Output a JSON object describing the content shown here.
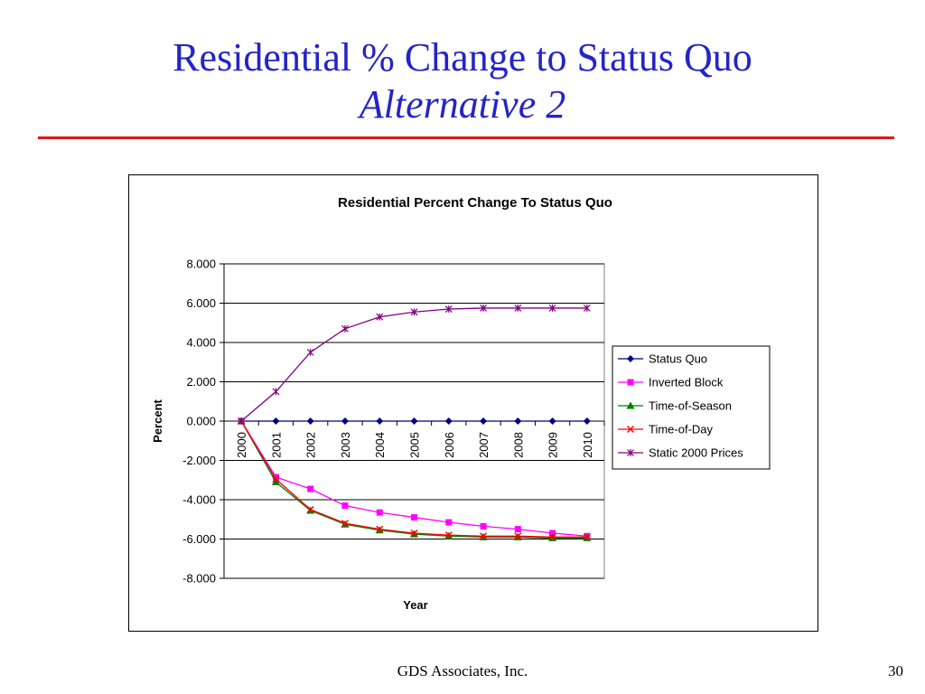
{
  "slide": {
    "title": "Residential % Change to Status Quo",
    "subtitle": "Alternative 2",
    "footer_company": "GDS Associates, Inc.",
    "page_number": "30",
    "title_color": "#2424c8",
    "rule_color": "#e01818"
  },
  "chart_data": {
    "type": "line",
    "title": "Residential Percent Change To Status Quo",
    "xlabel": "Year",
    "ylabel": "Percent",
    "categories": [
      "2000",
      "2001",
      "2002",
      "2003",
      "2004",
      "2005",
      "2006",
      "2007",
      "2008",
      "2009",
      "2010"
    ],
    "ylim": [
      -8,
      8
    ],
    "yticks": [
      "8.000",
      "6.000",
      "4.000",
      "2.000",
      "0.000",
      "-2.000",
      "-4.000",
      "-6.000",
      "-8.000"
    ],
    "grid": "horizontal",
    "legend_position": "right",
    "series": [
      {
        "name": "Status Quo",
        "color": "#000080",
        "marker": "diamond",
        "values": [
          0,
          0,
          0,
          0,
          0,
          0,
          0,
          0,
          0,
          0,
          0
        ]
      },
      {
        "name": "Inverted Block",
        "color": "#ff00ff",
        "marker": "square",
        "values": [
          0,
          -2.85,
          -3.45,
          -4.3,
          -4.65,
          -4.9,
          -5.15,
          -5.35,
          -5.5,
          -5.7,
          -5.85
        ]
      },
      {
        "name": "Time-of-Season",
        "color": "#008000",
        "marker": "triangle",
        "values": [
          0,
          -3.1,
          -4.55,
          -5.25,
          -5.55,
          -5.75,
          -5.85,
          -5.9,
          -5.9,
          -5.95,
          -5.95
        ]
      },
      {
        "name": "Time-of-Day",
        "color": "#ff0000",
        "marker": "x",
        "values": [
          0,
          -2.95,
          -4.5,
          -5.2,
          -5.5,
          -5.7,
          -5.8,
          -5.85,
          -5.85,
          -5.9,
          -5.9
        ]
      },
      {
        "name": "Static 2000 Prices",
        "color": "#800080",
        "marker": "star",
        "values": [
          0,
          1.5,
          3.5,
          4.7,
          5.3,
          5.55,
          5.7,
          5.75,
          5.75,
          5.75,
          5.75
        ]
      }
    ]
  }
}
